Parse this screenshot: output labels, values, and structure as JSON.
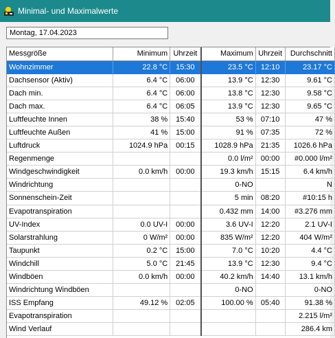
{
  "window": {
    "title": "Minimal- und Maximalwerte",
    "icon": "weather-app-icon"
  },
  "date_field": {
    "value": "Montag, 17.04.2023"
  },
  "table": {
    "headers": {
      "name": "Messgröße",
      "min": "Minimum",
      "min_time": "Uhrzeit",
      "max": "Maximum",
      "max_time": "Uhrzeit",
      "avg": "Durchschnitt"
    },
    "selected_row": 0,
    "rows": [
      {
        "name": "Wohnzimmer",
        "min": "22.8 °C",
        "min_time": "15:30",
        "max": "23.5 °C",
        "max_time": "12:10",
        "avg": "23.17 °C"
      },
      {
        "name": "Dachsensor (Aktiv)",
        "min": "6.4 °C",
        "min_time": "06:00",
        "max": "13.9 °C",
        "max_time": "12:30",
        "avg": "9.61 °C"
      },
      {
        "name": "Dach min.",
        "min": "6.4 °C",
        "min_time": "06:00",
        "max": "13.8 °C",
        "max_time": "12:30",
        "avg": "9.58 °C"
      },
      {
        "name": "Dach max.",
        "min": "6.4 °C",
        "min_time": "06:05",
        "max": "13.9 °C",
        "max_time": "12:30",
        "avg": "9.65 °C"
      },
      {
        "name": "Luftfeuchte Innen",
        "min": "38 %",
        "min_time": "15:40",
        "max": "53 %",
        "max_time": "07:10",
        "avg": "47 %"
      },
      {
        "name": "Luftfeuchte Außen",
        "min": "41 %",
        "min_time": "15:00",
        "max": "91 %",
        "max_time": "07:35",
        "avg": "72 %"
      },
      {
        "name": "Luftdruck",
        "min": "1024.9 hPa",
        "min_time": "00:15",
        "max": "1028.9 hPa",
        "max_time": "21:35",
        "avg": "1026.6 hPa"
      },
      {
        "name": "Regenmenge",
        "min": "",
        "min_time": "",
        "max": "0.0 l/m²",
        "max_time": "00:00",
        "avg": "#0.000 l/m²"
      },
      {
        "name": "Windgeschwindigkeit",
        "min": "0.0 km/h",
        "min_time": "00:00",
        "max": "19.3 km/h",
        "max_time": "15:15",
        "avg": "6.4 km/h"
      },
      {
        "name": "Windrichtung",
        "min": "",
        "min_time": "",
        "max": "0-NO",
        "max_time": "",
        "avg": "N"
      },
      {
        "name": "Sonnenschein-Zeit",
        "min": "",
        "min_time": "",
        "max": "5 min",
        "max_time": "08:20",
        "avg": "#10:15 h"
      },
      {
        "name": "Evapotranspiration",
        "min": "",
        "min_time": "",
        "max": "0.432 mm",
        "max_time": "14:00",
        "avg": "#3.276 mm"
      },
      {
        "name": "UV-Index",
        "min": "0.0 UV-I",
        "min_time": "00:00",
        "max": "3.6 UV-I",
        "max_time": "12:20",
        "avg": "2.1 UV-I"
      },
      {
        "name": "Solarstrahlung",
        "min": "0 W/m²",
        "min_time": "00:00",
        "max": "835 W/m²",
        "max_time": "12:20",
        "avg": "404 W/m²"
      },
      {
        "name": "Taupunkt",
        "min": "0.2 °C",
        "min_time": "15:00",
        "max": "7.0 °C",
        "max_time": "10:20",
        "avg": "4.4 °C"
      },
      {
        "name": "Windchill",
        "min": "5.0 °C",
        "min_time": "21:45",
        "max": "13.9 °C",
        "max_time": "12:30",
        "avg": "9.4 °C"
      },
      {
        "name": "Windböen",
        "min": "0.0 km/h",
        "min_time": "00:00",
        "max": "40.2 km/h",
        "max_time": "14:40",
        "avg": "13.1 km/h"
      },
      {
        "name": "Windrichtung Windböen",
        "min": "",
        "min_time": "",
        "max": "0-NO",
        "max_time": "",
        "avg": "0-NO"
      },
      {
        "name": "ISS Empfang",
        "min": "49.12 %",
        "min_time": "02:05",
        "max": "100.00 %",
        "max_time": "05:40",
        "avg": "91.38 %"
      },
      {
        "name": "Evapotranspiration",
        "min": "",
        "min_time": "",
        "max": "",
        "max_time": "",
        "avg": "2.215 l/m²"
      },
      {
        "name": "Wind Verlauf",
        "min": "",
        "min_time": "",
        "max": "",
        "max_time": "",
        "avg": "286.4 km"
      }
    ]
  }
}
